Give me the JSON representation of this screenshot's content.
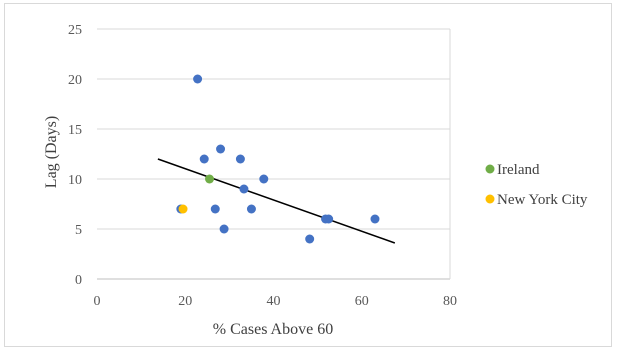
{
  "chart_data": {
    "type": "scatter",
    "title": "",
    "xlabel": "% Cases Above 60",
    "ylabel": "Lag (Days)",
    "xlim": [
      0,
      80
    ],
    "ylim": [
      0,
      25
    ],
    "x_ticks": [
      0,
      20,
      40,
      60,
      80
    ],
    "y_ticks": [
      0,
      5,
      10,
      15,
      20,
      25
    ],
    "grid": "horizontal",
    "legend_position": "right",
    "series": [
      {
        "name": "",
        "color": "#4472c4",
        "points": [
          {
            "x": 22.8,
            "y": 20
          },
          {
            "x": 24.3,
            "y": 12
          },
          {
            "x": 28.0,
            "y": 13
          },
          {
            "x": 32.5,
            "y": 12
          },
          {
            "x": 33.3,
            "y": 9
          },
          {
            "x": 37.8,
            "y": 10
          },
          {
            "x": 35.0,
            "y": 7
          },
          {
            "x": 26.8,
            "y": 7
          },
          {
            "x": 28.8,
            "y": 5
          },
          {
            "x": 19.0,
            "y": 7
          },
          {
            "x": 48.2,
            "y": 4
          },
          {
            "x": 51.8,
            "y": 6
          },
          {
            "x": 52.5,
            "y": 6
          },
          {
            "x": 63.0,
            "y": 6
          }
        ]
      },
      {
        "name": "Ireland",
        "color": "#70ad47",
        "points": [
          {
            "x": 25.5,
            "y": 10
          }
        ]
      },
      {
        "name": "New York City",
        "color": "#ffc000",
        "points": [
          {
            "x": 19.5,
            "y": 7
          }
        ]
      }
    ],
    "trendline": {
      "type": "linear",
      "color": "#000000",
      "start": {
        "x": 13.8,
        "y": 12.0
      },
      "end": {
        "x": 67.5,
        "y": 3.6
      }
    }
  }
}
